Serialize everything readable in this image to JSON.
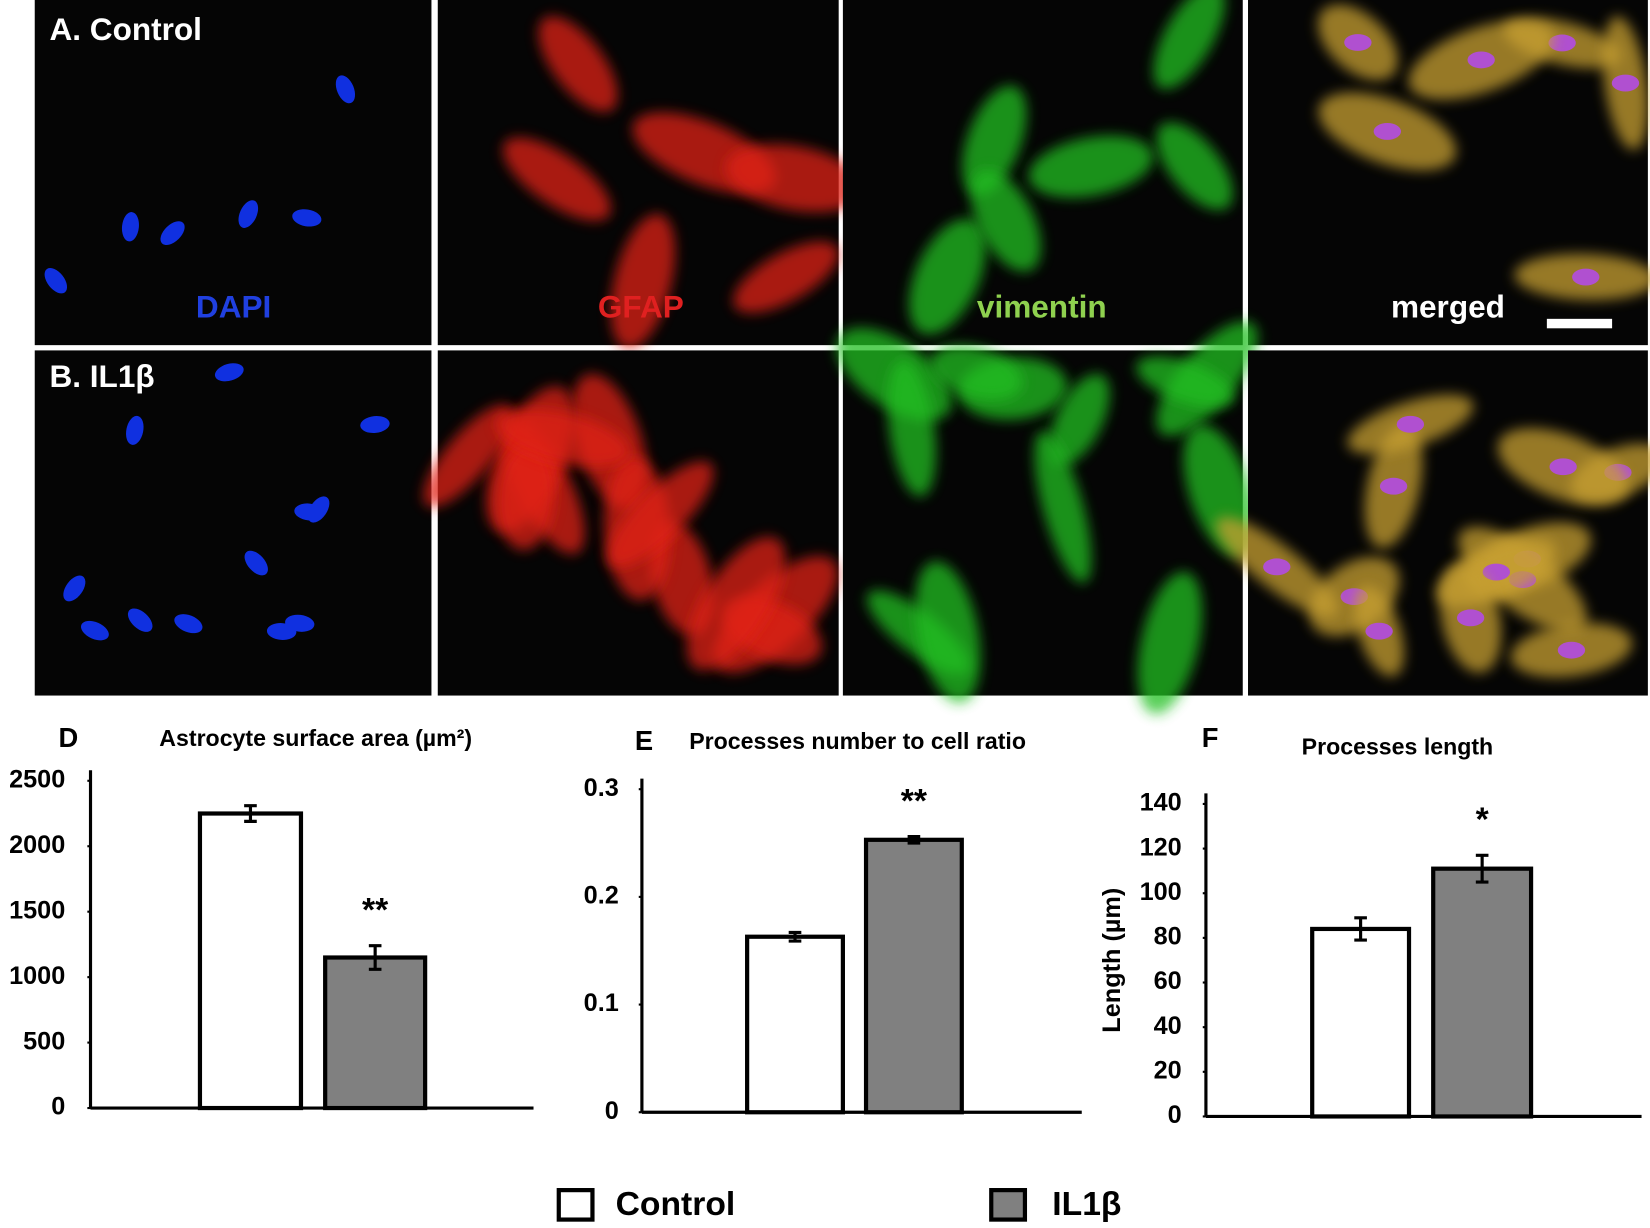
{
  "panels": {
    "rows": [
      "A. Control",
      "B. IL1β"
    ],
    "channels": [
      "DAPI",
      "GFAP",
      "vimentin",
      "merged"
    ]
  },
  "legend": [
    {
      "name": "Control",
      "color": "#ffffff"
    },
    {
      "name": "IL1β",
      "color": "#808080"
    }
  ],
  "chart_data": [
    {
      "type": "bar",
      "panel": "D",
      "title": "Astrocyte  surface area (µm²)",
      "values": [
        2250,
        1150
      ],
      "errors": [
        60,
        90
      ],
      "value_annotations": [
        null,
        "**"
      ],
      "ylim": [
        0,
        2500
      ],
      "yticks": [
        0,
        500,
        1000,
        1500,
        2000,
        2500
      ]
    },
    {
      "type": "bar",
      "panel": "E",
      "title": "Processes number to cell ratio",
      "values": [
        0.163,
        0.253
      ],
      "errors": [
        0.004,
        0.003
      ],
      "value_annotations": [
        null,
        "**"
      ],
      "ylim": [
        0,
        0.3
      ],
      "yticks": [
        0,
        0.1,
        0.2,
        0.3
      ]
    },
    {
      "type": "bar",
      "panel": "F",
      "title": "Processes length",
      "ylabel": "Length (µm)",
      "values": [
        84,
        111
      ],
      "errors": [
        5,
        6
      ],
      "value_annotations": [
        null,
        "*"
      ],
      "ylim": [
        0,
        140
      ],
      "yticks": [
        0,
        20,
        40,
        60,
        80,
        100,
        120,
        140
      ]
    }
  ]
}
